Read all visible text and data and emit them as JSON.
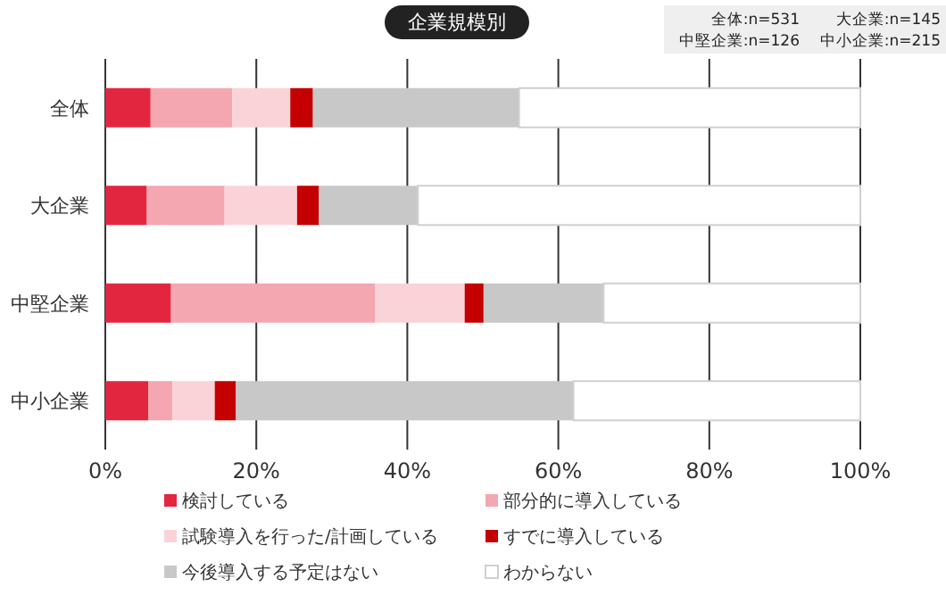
{
  "chart_data": {
    "type": "bar",
    "orientation": "horizontal",
    "stacked": true,
    "title": "企業規模別",
    "categories": [
      "全体",
      "大企業",
      "中堅企業",
      "中小企業"
    ],
    "series": [
      {
        "name": "検討している",
        "color": "#e32640",
        "values": [
          6.0,
          5.5,
          8.7,
          5.7
        ]
      },
      {
        "name": "部分的に導入している",
        "color": "#f4a7b1",
        "values": [
          10.8,
          10.3,
          27.0,
          3.2
        ]
      },
      {
        "name": "試験導入を行った/計画している",
        "color": "#fad3d9",
        "values": [
          7.7,
          9.6,
          11.9,
          5.6
        ]
      },
      {
        "name": "すでに導入している",
        "color": "#c40000",
        "values": [
          3.0,
          2.9,
          2.5,
          2.8
        ]
      },
      {
        "name": "今後導入する予定はない",
        "color": "#c8c8c8",
        "values": [
          27.3,
          13.1,
          15.9,
          44.7
        ]
      },
      {
        "name": "わからない",
        "color": "#ffffff",
        "values": [
          45.2,
          58.6,
          34.0,
          38.0
        ]
      }
    ],
    "xlim": [
      0,
      100
    ],
    "xticks": [
      {
        "value": 0,
        "label": "0%"
      },
      {
        "value": 20,
        "label": "20%"
      },
      {
        "value": 40,
        "label": "40%"
      },
      {
        "value": 60,
        "label": "60%"
      },
      {
        "value": 80,
        "label": "80%"
      },
      {
        "value": 100,
        "label": "100%"
      }
    ],
    "grid": "x",
    "legend": "bottom",
    "annotations": [
      "全体:n=531",
      "大企業:n=145",
      "中堅企業:n=126",
      "中小企業:n=215"
    ]
  }
}
